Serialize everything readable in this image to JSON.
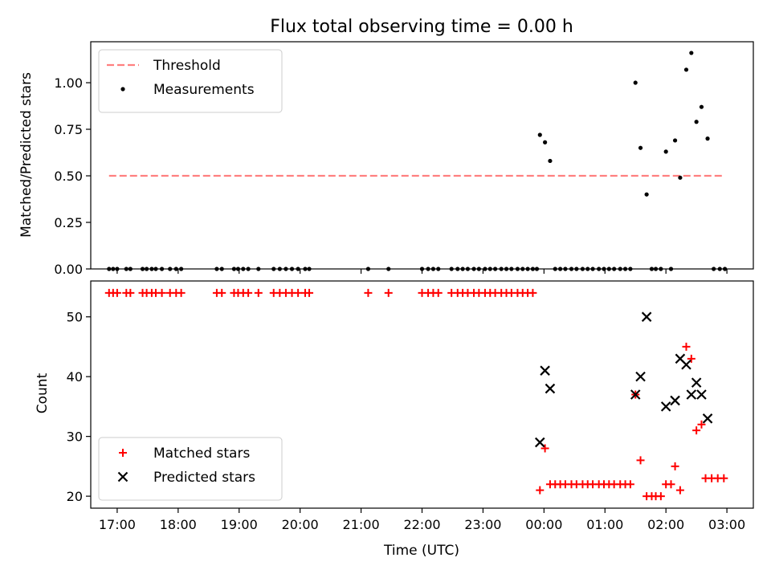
{
  "chart_data": [
    {
      "type": "scatter",
      "title": "Flux total observing time = 0.00 h",
      "xlabel": "",
      "ylabel": "Matched/Predicted stars",
      "x_unit": "UTC time",
      "xlim": [
        "16:34",
        "03:26"
      ],
      "ylim": [
        0,
        1.22
      ],
      "x_ticks": [
        "17:00",
        "18:00",
        "19:00",
        "20:00",
        "21:00",
        "22:00",
        "23:00",
        "00:00",
        "01:00",
        "02:00",
        "03:00"
      ],
      "y_ticks": [
        "0.00",
        "0.25",
        "0.50",
        "0.75",
        "1.00"
      ],
      "legend_position": "upper-left",
      "series": [
        {
          "name": "Threshold",
          "kind": "dashed-line",
          "color": "#ff7f7f",
          "x": [
            "16:52",
            "02:57"
          ],
          "y": [
            0.5,
            0.5
          ]
        },
        {
          "name": "Measurements",
          "kind": "points",
          "color": "#000000",
          "x": [
            "16:52",
            "16:56",
            "17:00",
            "17:09",
            "17:13",
            "17:25",
            "17:29",
            "17:34",
            "17:38",
            "17:44",
            "17:52",
            "17:58",
            "18:03",
            "18:38",
            "18:43",
            "18:55",
            "18:59",
            "19:04",
            "19:09",
            "19:19",
            "19:34",
            "19:40",
            "19:46",
            "19:52",
            "19:58",
            "20:05",
            "20:09",
            "21:07",
            "21:27",
            "22:00",
            "22:06",
            "22:11",
            "22:16",
            "22:29",
            "22:35",
            "22:40",
            "22:45",
            "22:51",
            "22:56",
            "23:02",
            "23:07",
            "23:12",
            "23:18",
            "23:23",
            "23:28",
            "23:34",
            "23:39",
            "23:44",
            "23:49",
            "23:53",
            "23:56",
            "00:01",
            "00:06",
            "00:11",
            "00:16",
            "00:21",
            "00:27",
            "00:32",
            "00:38",
            "00:43",
            "00:48",
            "00:54",
            "00:59",
            "01:04",
            "01:09",
            "01:15",
            "01:20",
            "01:25",
            "01:30",
            "01:35",
            "01:41",
            "01:46",
            "01:50",
            "01:55",
            "02:05",
            "02:00",
            "02:09",
            "02:14",
            "02:20",
            "02:25",
            "02:30",
            "02:35",
            "02:41",
            "02:47",
            "02:53",
            "02:58"
          ],
          "y": [
            0,
            0,
            0,
            0,
            0,
            0,
            0,
            0,
            0,
            0,
            0,
            0,
            0,
            0,
            0,
            0,
            0,
            0,
            0,
            0,
            0,
            0,
            0,
            0,
            0,
            0,
            0,
            0,
            0,
            0,
            0,
            0,
            0,
            0,
            0,
            0,
            0,
            0,
            0,
            0,
            0,
            0,
            0,
            0,
            0,
            0,
            0,
            0,
            0,
            0,
            0.72,
            0.68,
            0.58,
            0,
            0,
            0,
            0,
            0,
            0,
            0,
            0,
            0,
            0,
            0,
            0,
            0,
            0,
            0,
            1.0,
            0.65,
            0.4,
            0,
            0,
            0,
            0,
            0.63,
            0.69,
            0.49,
            1.07,
            1.16,
            0.79,
            0.87,
            0.7,
            0,
            0,
            0
          ]
        }
      ]
    },
    {
      "type": "scatter",
      "title": "",
      "xlabel": "Time (UTC)",
      "ylabel": "Count",
      "x_unit": "UTC time",
      "xlim": [
        "16:34",
        "03:26"
      ],
      "ylim": [
        18,
        56
      ],
      "x_ticks": [
        "17:00",
        "18:00",
        "19:00",
        "20:00",
        "21:00",
        "22:00",
        "23:00",
        "00:00",
        "01:00",
        "02:00",
        "03:00"
      ],
      "y_ticks": [
        "20",
        "30",
        "40",
        "50"
      ],
      "legend_position": "lower-left",
      "series": [
        {
          "name": "Matched stars",
          "marker": "+",
          "color": "#ff0000",
          "x": [
            "16:52",
            "16:56",
            "17:00",
            "17:09",
            "17:13",
            "17:25",
            "17:29",
            "17:34",
            "17:38",
            "17:44",
            "17:52",
            "17:58",
            "18:03",
            "18:38",
            "18:43",
            "18:55",
            "18:59",
            "19:04",
            "19:09",
            "19:19",
            "19:34",
            "19:40",
            "19:46",
            "19:52",
            "19:58",
            "20:05",
            "20:09",
            "21:07",
            "21:27",
            "22:00",
            "22:06",
            "22:11",
            "22:16",
            "22:29",
            "22:35",
            "22:40",
            "22:45",
            "22:51",
            "22:56",
            "23:02",
            "23:07",
            "23:12",
            "23:18",
            "23:23",
            "23:28",
            "23:34",
            "23:39",
            "23:44",
            "23:49",
            "23:56",
            "00:01",
            "00:06",
            "00:11",
            "00:16",
            "00:21",
            "00:27",
            "00:32",
            "00:38",
            "00:43",
            "00:48",
            "00:54",
            "00:59",
            "01:04",
            "01:09",
            "01:15",
            "01:20",
            "01:25",
            "01:30",
            "01:35",
            "01:41",
            "01:46",
            "01:50",
            "01:55",
            "02:00",
            "02:05",
            "02:09",
            "02:14",
            "02:20",
            "02:25",
            "02:30",
            "02:35",
            "02:39",
            "02:45",
            "02:51",
            "02:57"
          ],
          "y": [
            54,
            54,
            54,
            54,
            54,
            54,
            54,
            54,
            54,
            54,
            54,
            54,
            54,
            54,
            54,
            54,
            54,
            54,
            54,
            54,
            54,
            54,
            54,
            54,
            54,
            54,
            54,
            54,
            54,
            54,
            54,
            54,
            54,
            54,
            54,
            54,
            54,
            54,
            54,
            54,
            54,
            54,
            54,
            54,
            54,
            54,
            54,
            54,
            54,
            21,
            28,
            22,
            22,
            22,
            22,
            22,
            22,
            22,
            22,
            22,
            22,
            22,
            22,
            22,
            22,
            22,
            22,
            37,
            26,
            20,
            20,
            20,
            20,
            22,
            22,
            25,
            21,
            45,
            43,
            31,
            32,
            23,
            23,
            23,
            23
          ]
        },
        {
          "name": "Predicted stars",
          "marker": "x",
          "color": "#000000",
          "x": [
            "23:56",
            "00:01",
            "00:06",
            "01:30",
            "01:35",
            "01:41",
            "02:00",
            "02:09",
            "02:14",
            "02:20",
            "02:25",
            "02:30",
            "02:35",
            "02:41"
          ],
          "y": [
            29,
            41,
            38,
            37,
            40,
            50,
            35,
            36,
            43,
            42,
            37,
            39,
            37,
            33
          ]
        }
      ]
    }
  ]
}
